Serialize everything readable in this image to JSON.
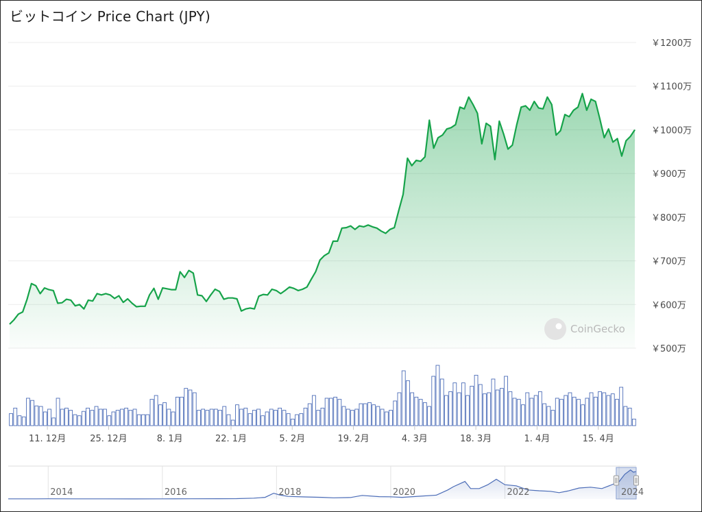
{
  "title": "ビットコイン Price Chart (JPY)",
  "watermark": "CoinGecko",
  "chart_data": {
    "type": "area",
    "title": "ビットコイン Price Chart (JPY)",
    "currency": "JPY",
    "unit": "万",
    "y_tick_labels": [
      "￥500万",
      "￥600万",
      "￥700万",
      "￥800万",
      "￥900万",
      "￥1000万",
      "￥1100万",
      "￥1200万"
    ],
    "y_ticks": [
      500,
      600,
      700,
      800,
      900,
      1000,
      1100,
      1200
    ],
    "ylim": [
      500,
      1200
    ],
    "x_tick_labels": [
      "11. 12月",
      "25. 12月",
      "8. 1月",
      "22. 1月",
      "5. 2月",
      "19. 2月",
      "4. 3月",
      "18. 3月",
      "1. 4月",
      "15. 4月"
    ],
    "x_ticks_day": [
      3,
      17,
      31,
      45,
      59,
      73,
      87,
      101,
      115,
      129
    ],
    "xlim_day": [
      0,
      138
    ],
    "line_color": "#16a34a",
    "fill_color": "#16a34a",
    "price": [
      [
        0,
        555
      ],
      [
        1,
        565
      ],
      [
        2,
        578
      ],
      [
        3,
        583
      ],
      [
        4,
        612
      ],
      [
        5,
        648
      ],
      [
        6,
        643
      ],
      [
        7,
        625
      ],
      [
        8,
        638
      ],
      [
        9,
        634
      ],
      [
        10,
        632
      ],
      [
        11,
        603
      ],
      [
        12,
        604
      ],
      [
        13,
        612
      ],
      [
        14,
        610
      ],
      [
        15,
        597
      ],
      [
        16,
        600
      ],
      [
        17,
        590
      ],
      [
        18,
        610
      ],
      [
        19,
        608
      ],
      [
        20,
        625
      ],
      [
        21,
        622
      ],
      [
        22,
        625
      ],
      [
        23,
        622
      ],
      [
        24,
        614
      ],
      [
        25,
        620
      ],
      [
        26,
        605
      ],
      [
        27,
        613
      ],
      [
        28,
        603
      ],
      [
        29,
        595
      ],
      [
        30,
        596
      ],
      [
        31,
        596
      ],
      [
        32,
        622
      ],
      [
        33,
        637
      ],
      [
        34,
        612
      ],
      [
        35,
        638
      ],
      [
        36,
        636
      ],
      [
        37,
        634
      ],
      [
        38,
        634
      ],
      [
        39,
        675
      ],
      [
        40,
        662
      ],
      [
        41,
        678
      ],
      [
        42,
        672
      ],
      [
        43,
        622
      ],
      [
        44,
        620
      ],
      [
        45,
        607
      ],
      [
        46,
        622
      ],
      [
        47,
        635
      ],
      [
        48,
        630
      ],
      [
        49,
        612
      ],
      [
        50,
        615
      ],
      [
        51,
        615
      ],
      [
        52,
        613
      ],
      [
        53,
        585
      ],
      [
        54,
        590
      ],
      [
        55,
        592
      ],
      [
        56,
        590
      ],
      [
        57,
        619
      ],
      [
        58,
        623
      ],
      [
        59,
        622
      ],
      [
        60,
        635
      ],
      [
        61,
        632
      ],
      [
        62,
        625
      ],
      [
        63,
        632
      ],
      [
        64,
        640
      ],
      [
        65,
        637
      ],
      [
        66,
        632
      ],
      [
        67,
        635
      ],
      [
        68,
        640
      ],
      [
        69,
        658
      ],
      [
        70,
        675
      ],
      [
        71,
        702
      ],
      [
        72,
        712
      ],
      [
        73,
        718
      ],
      [
        74,
        745
      ],
      [
        75,
        745
      ],
      [
        76,
        775
      ],
      [
        77,
        776
      ],
      [
        78,
        780
      ],
      [
        79,
        772
      ],
      [
        80,
        780
      ],
      [
        81,
        778
      ],
      [
        82,
        782
      ],
      [
        83,
        778
      ],
      [
        84,
        775
      ],
      [
        85,
        768
      ],
      [
        86,
        763
      ],
      [
        87,
        772
      ],
      [
        88,
        776
      ],
      [
        89,
        815
      ],
      [
        90,
        852
      ],
      [
        91,
        935
      ],
      [
        92,
        918
      ],
      [
        93,
        930
      ],
      [
        94,
        928
      ],
      [
        95,
        938
      ],
      [
        96,
        1022
      ],
      [
        97,
        958
      ],
      [
        98,
        982
      ],
      [
        99,
        988
      ],
      [
        100,
        1002
      ],
      [
        101,
        1005
      ],
      [
        102,
        1012
      ],
      [
        103,
        1052
      ],
      [
        104,
        1048
      ],
      [
        105,
        1075
      ],
      [
        106,
        1058
      ],
      [
        107,
        1038
      ],
      [
        108,
        968
      ],
      [
        109,
        1015
      ],
      [
        110,
        1008
      ],
      [
        111,
        932
      ],
      [
        112,
        1020
      ],
      [
        113,
        990
      ],
      [
        114,
        956
      ],
      [
        115,
        965
      ],
      [
        116,
        1012
      ],
      [
        117,
        1052
      ],
      [
        118,
        1055
      ],
      [
        119,
        1045
      ],
      [
        120,
        1065
      ],
      [
        121,
        1050
      ],
      [
        122,
        1048
      ],
      [
        123,
        1075
      ],
      [
        124,
        1058
      ],
      [
        125,
        988
      ],
      [
        126,
        998
      ],
      [
        127,
        1035
      ],
      [
        128,
        1030
      ],
      [
        129,
        1045
      ],
      [
        130,
        1052
      ],
      [
        131,
        1083
      ],
      [
        132,
        1045
      ],
      [
        133,
        1070
      ],
      [
        134,
        1065
      ],
      [
        135,
        1025
      ],
      [
        136,
        982
      ],
      [
        137,
        1002
      ],
      [
        138,
        972
      ],
      [
        139,
        980
      ],
      [
        140,
        940
      ],
      [
        141,
        975
      ],
      [
        142,
        985
      ],
      [
        143,
        1000
      ]
    ],
    "volume_relative": [
      0.22,
      0.32,
      0.18,
      0.16,
      0.5,
      0.46,
      0.36,
      0.35,
      0.25,
      0.3,
      0.14,
      0.5,
      0.3,
      0.32,
      0.28,
      0.2,
      0.18,
      0.26,
      0.32,
      0.28,
      0.35,
      0.3,
      0.3,
      0.18,
      0.25,
      0.28,
      0.3,
      0.32,
      0.28,
      0.3,
      0.2,
      0.2,
      0.2,
      0.48,
      0.55,
      0.38,
      0.42,
      0.3,
      0.25,
      0.52,
      0.52,
      0.68,
      0.65,
      0.6,
      0.28,
      0.3,
      0.28,
      0.3,
      0.3,
      0.28,
      0.35,
      0.2,
      0.1,
      0.38,
      0.3,
      0.32,
      0.22,
      0.28,
      0.3,
      0.18,
      0.25,
      0.3,
      0.28,
      0.32,
      0.28,
      0.22,
      0.12,
      0.2,
      0.22,
      0.32,
      0.4,
      0.55,
      0.28,
      0.32,
      0.5,
      0.5,
      0.52,
      0.48,
      0.35,
      0.3,
      0.28,
      0.3,
      0.4,
      0.4,
      0.42,
      0.38,
      0.35,
      0.3,
      0.25,
      0.28,
      0.45,
      0.6,
      1.0,
      0.82,
      0.6,
      0.52,
      0.48,
      0.42,
      0.35,
      0.9,
      1.1,
      0.85,
      0.55,
      0.62,
      0.78,
      0.6,
      0.78,
      0.55,
      0.72,
      0.92,
      0.75,
      0.58,
      0.6,
      0.85,
      0.65,
      0.68,
      0.9,
      0.62,
      0.5,
      0.48,
      0.38,
      0.6,
      0.5,
      0.55,
      0.62,
      0.4,
      0.35,
      0.28,
      0.5,
      0.48,
      0.55,
      0.6,
      0.52,
      0.48,
      0.38,
      0.5,
      0.6,
      0.52,
      0.62,
      0.6,
      0.55,
      0.58,
      0.48,
      0.7,
      0.35,
      0.32,
      0.12
    ],
    "volume_color": "#4b6cb7",
    "navigator": {
      "x_tick_labels": [
        "2014",
        "2016",
        "2018",
        "2020",
        "2022",
        "2024"
      ],
      "x_ticks_year": [
        2014,
        2016,
        2018,
        2020,
        2022,
        2024
      ],
      "xlim_year": [
        2013.3,
        2024.3
      ],
      "history": [
        [
          2013.3,
          5
        ],
        [
          2013.8,
          5
        ],
        [
          2014.0,
          8
        ],
        [
          2014.5,
          6
        ],
        [
          2015.0,
          4
        ],
        [
          2015.5,
          3
        ],
        [
          2016.0,
          4
        ],
        [
          2016.5,
          7
        ],
        [
          2017.0,
          10
        ],
        [
          2017.3,
          13
        ],
        [
          2017.6,
          30
        ],
        [
          2017.8,
          60
        ],
        [
          2017.95,
          210
        ],
        [
          2018.05,
          150
        ],
        [
          2018.2,
          95
        ],
        [
          2018.5,
          75
        ],
        [
          2018.8,
          60
        ],
        [
          2019.0,
          42
        ],
        [
          2019.3,
          55
        ],
        [
          2019.5,
          130
        ],
        [
          2019.8,
          85
        ],
        [
          2020.0,
          80
        ],
        [
          2020.2,
          60
        ],
        [
          2020.5,
          100
        ],
        [
          2020.8,
          140
        ],
        [
          2021.0,
          330
        ],
        [
          2021.1,
          450
        ],
        [
          2021.3,
          640
        ],
        [
          2021.4,
          380
        ],
        [
          2021.55,
          380
        ],
        [
          2021.7,
          520
        ],
        [
          2021.85,
          720
        ],
        [
          2022.0,
          520
        ],
        [
          2022.2,
          480
        ],
        [
          2022.4,
          330
        ],
        [
          2022.6,
          300
        ],
        [
          2022.8,
          280
        ],
        [
          2022.95,
          230
        ],
        [
          2023.1,
          290
        ],
        [
          2023.3,
          400
        ],
        [
          2023.5,
          430
        ],
        [
          2023.7,
          380
        ],
        [
          2023.85,
          500
        ],
        [
          2024.0,
          630
        ],
        [
          2024.1,
          900
        ],
        [
          2024.2,
          1060
        ],
        [
          2024.25,
          980
        ],
        [
          2024.3,
          1000
        ]
      ],
      "history_ylim": [
        0,
        1150
      ],
      "selection_year": [
        2023.95,
        2024.3
      ]
    }
  }
}
